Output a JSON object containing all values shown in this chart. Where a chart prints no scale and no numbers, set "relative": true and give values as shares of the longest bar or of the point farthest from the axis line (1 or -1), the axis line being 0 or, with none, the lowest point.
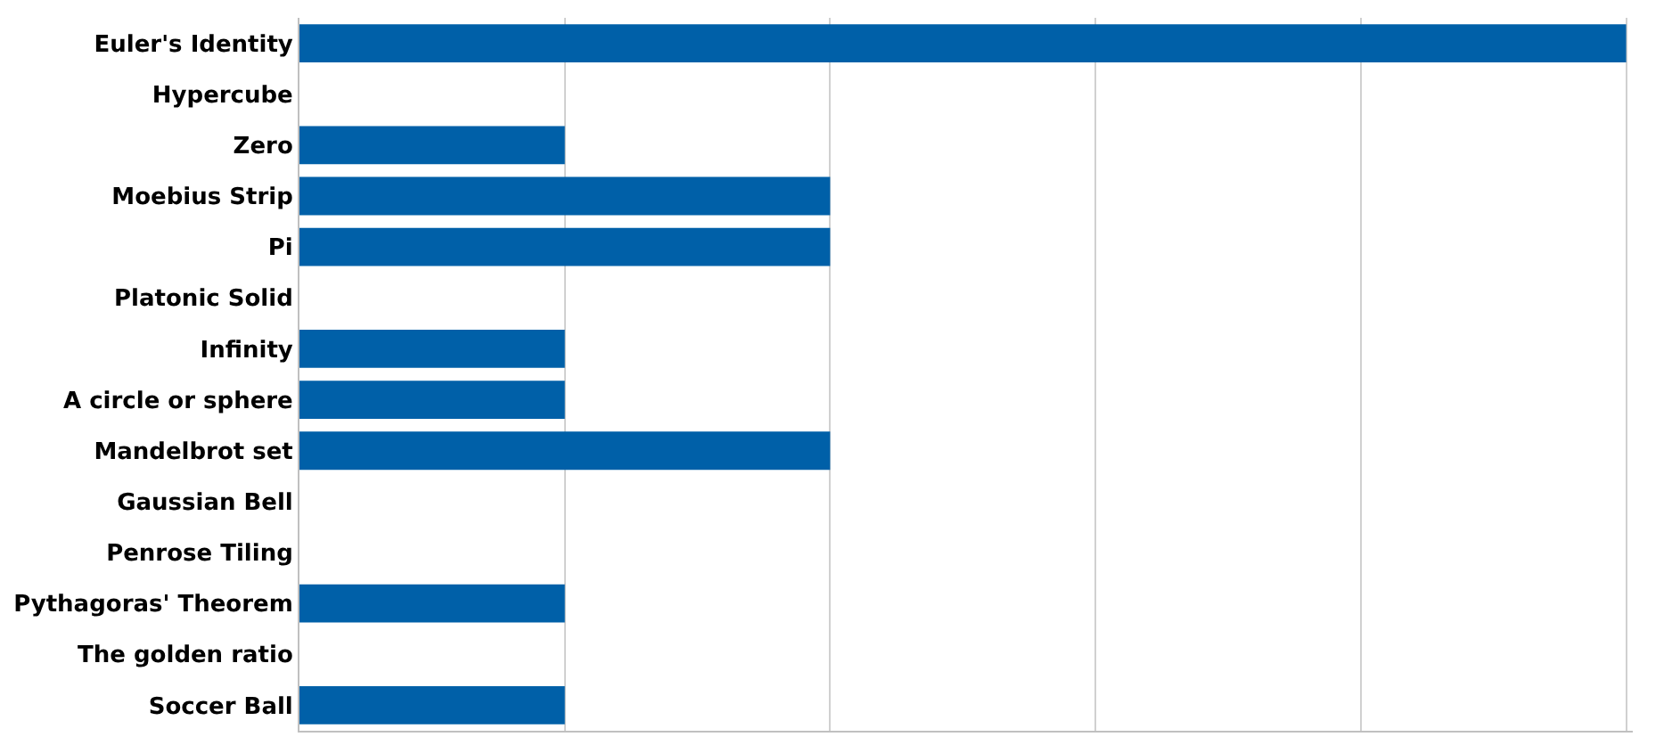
{
  "chart_data": {
    "type": "bar",
    "orientation": "horizontal",
    "relative": true,
    "grid": "x",
    "legend": false,
    "categories": [
      "Euler's Identity",
      "Hypercube",
      "Zero",
      "Moebius Strip",
      "Pi",
      "Platonic Solid",
      "Infinity",
      "A circle or sphere",
      "Mandelbrot set",
      "Gaussian Bell",
      "Penrose Tiling",
      "Pythagoras' Theorem",
      "The golden ratio",
      "Soccer Ball"
    ],
    "values": [
      1,
      0,
      0.2,
      0.4,
      0.4,
      0,
      0.2,
      0.2,
      0.4,
      0,
      0,
      0.2,
      0,
      0.2
    ],
    "color": "#0060a8"
  }
}
